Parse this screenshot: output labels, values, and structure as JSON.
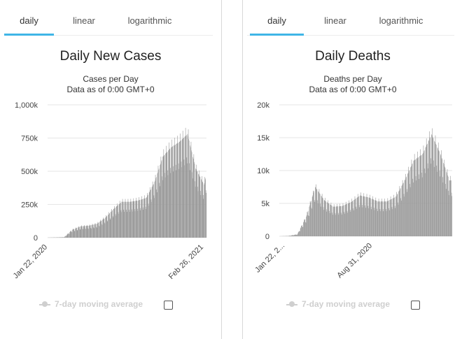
{
  "panels": [
    {
      "tabs": [
        "daily",
        "linear",
        "logarithmic"
      ],
      "active_tab": 0,
      "title": "Daily New Cases",
      "subtitle_1": "Cases per Day",
      "subtitle_2": "Data as of 0:00 GMT+0",
      "legend_label": "7-day moving average"
    },
    {
      "tabs": [
        "daily",
        "linear",
        "logarithmic"
      ],
      "active_tab": 0,
      "title": "Daily Deaths",
      "subtitle_1": "Deaths per Day",
      "subtitle_2": "Data as of 0:00 GMT+0",
      "legend_label": "7-day moving average"
    }
  ],
  "colors": {
    "bar": "#9a9a9a",
    "grid": "#e6e6e6",
    "tab_active": "#3fb5e6",
    "legend_disabled": "#cfcfcf"
  },
  "chart_data": [
    {
      "type": "bar",
      "title": "Daily New Cases",
      "ylabel": "Cases per Day",
      "x_start": "2020-01-22",
      "x_end": "2021-03-03",
      "x_tick_labels": [
        "Jan 22, 2020",
        "Feb 26, 2021"
      ],
      "y_ticks": [
        "0",
        "250k",
        "500k",
        "750k",
        "1,000k"
      ],
      "ylim": [
        0,
        1000000
      ],
      "grid": true,
      "series": [
        {
          "x": [
            "2020-01-22",
            "2020-02-12",
            "2020-03-04",
            "2020-03-25",
            "2020-04-15",
            "2020-05-06",
            "2020-05-27",
            "2020-06-17",
            "2020-07-08",
            "2020-07-29",
            "2020-08-19",
            "2020-09-09",
            "2020-09-30",
            "2020-10-21",
            "2020-11-11",
            "2020-12-02",
            "2020-12-23",
            "2021-01-13",
            "2021-02-03",
            "2021-02-24",
            "2021-03-03"
          ],
          "values": [
            500,
            2000,
            4000,
            60000,
            85000,
            90000,
            105000,
            150000,
            215000,
            270000,
            270000,
            280000,
            300000,
            420000,
            610000,
            680000,
            720000,
            780000,
            520000,
            400000,
            480000
          ]
        }
      ]
    },
    {
      "type": "bar",
      "title": "Daily Deaths",
      "ylabel": "Deaths per Day",
      "x_start": "2020-01-22",
      "x_end": "2021-03-03",
      "x_tick_labels": [
        "Jan 22, 2...",
        "Aug 31, 2020"
      ],
      "y_ticks": [
        "0",
        "5k",
        "10k",
        "15k",
        "20k"
      ],
      "ylim": [
        0,
        20000
      ],
      "grid": true,
      "series": [
        {
          "x": [
            "2020-01-22",
            "2020-02-12",
            "2020-03-04",
            "2020-03-25",
            "2020-04-15",
            "2020-05-06",
            "2020-05-27",
            "2020-06-17",
            "2020-07-08",
            "2020-07-29",
            "2020-08-19",
            "2020-09-09",
            "2020-09-30",
            "2020-10-21",
            "2020-11-11",
            "2020-12-02",
            "2020-12-23",
            "2021-01-13",
            "2021-02-03",
            "2021-02-24",
            "2021-03-03"
          ],
          "values": [
            0,
            50,
            300,
            3000,
            7500,
            5500,
            4500,
            4600,
            5200,
            6200,
            5900,
            5300,
            5300,
            6000,
            8500,
            11500,
            12500,
            15500,
            12500,
            8500,
            8500
          ]
        }
      ]
    }
  ]
}
